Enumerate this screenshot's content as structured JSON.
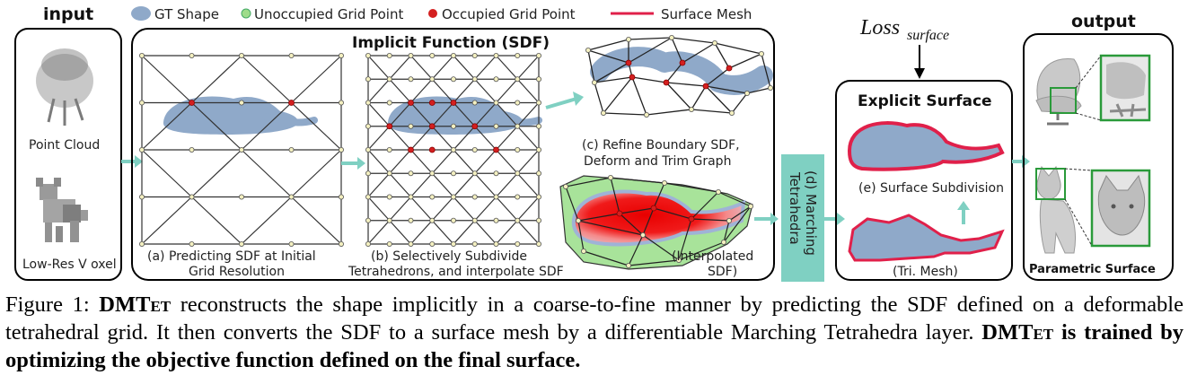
{
  "legend": {
    "gt_shape": "GT Shape",
    "unoccupied": "Unoccupied Grid Point",
    "occupied": "Occupied Grid Point",
    "surface_mesh": "Surface Mesh"
  },
  "panels": {
    "input_title": "input",
    "point_cloud": "Point Cloud",
    "low_res_voxel": "Low-Res V oxel",
    "implicit_title": "Implicit Function (SDF)",
    "a_line1": "(a) Predicting SDF at Initial",
    "a_line2": "Grid Resolution",
    "b_line1": "(b) Selectively Subdivide",
    "b_line2": "Tetrahedrons, and interpolate SDF",
    "c_line1": "(c) Refine Boundary SDF,",
    "c_line2": "Deform and Trim Graph",
    "interp_line1": "(Interpolated",
    "interp_line2": "SDF)",
    "d_line1": "(d) Marching",
    "d_line2": "Tetrahedra",
    "loss_main": "Loss",
    "loss_sub": "surface",
    "explicit_title": "Explicit Surface",
    "e_label": "(e) Surface Subdivision",
    "tri_mesh": "(Tri. Mesh)",
    "output_title": "output",
    "parametric": "Parametric Surface"
  },
  "caption": {
    "fig": "Figure 1:",
    "name": "DMT",
    "name_sc": "et",
    "text1": " reconstructs the shape implicitly in a coarse-to-fine manner by predicting the SDF defined on a deformable tetrahedral grid.  It then converts the SDF to a surface mesh by a differentiable Marching Tetrahedra layer. ",
    "bold_name": "DMT",
    "bold_name_sc": "et",
    "bold_text": " is trained by optimizing the objective function defined on the final surface."
  },
  "colors": {
    "shape": "#8fa9c9",
    "occupied": "#d41f1f",
    "unoccupied": "#f4f0c0",
    "mesh": "#e0204a",
    "arrow": "#7fd0c2",
    "green": "#a8e39a"
  }
}
